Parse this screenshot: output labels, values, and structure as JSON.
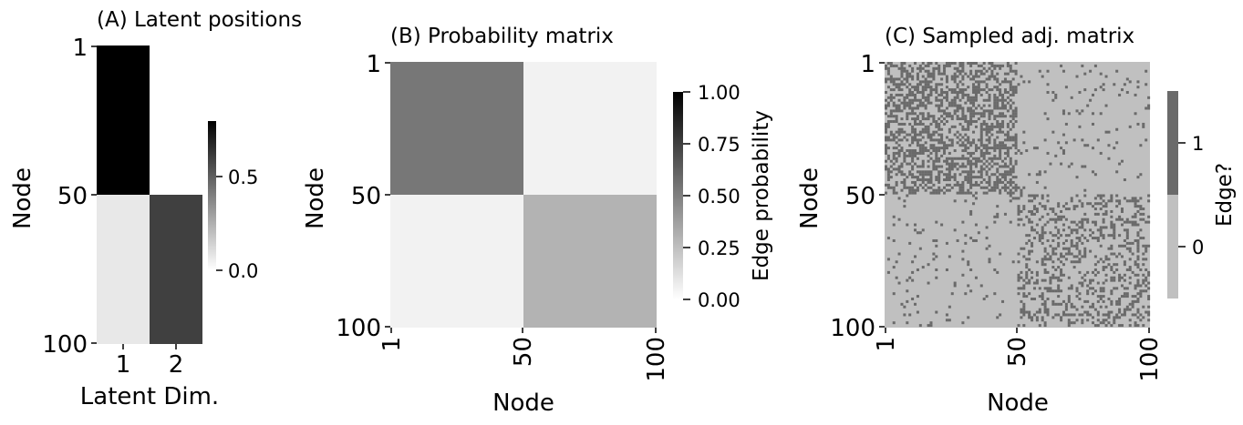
{
  "chart_data": [
    {
      "type": "heatmap",
      "title": "(A) Latent positions",
      "xlabel": "Latent Dim.",
      "ylabel": "Node",
      "xticks": [
        "1",
        "2"
      ],
      "yticks": [
        "1",
        "50",
        "100"
      ],
      "rows": [
        "Nodes 1-50",
        "Nodes 51-100"
      ],
      "values": [
        [
          0.8,
          0.0
        ],
        [
          0.0,
          0.6
        ]
      ],
      "colorbar": {
        "label": "",
        "range": [
          0,
          0.8
        ],
        "ticks": [
          "0.0",
          "0.5"
        ]
      },
      "colormap": [
        "#ffffff",
        "#000000"
      ]
    },
    {
      "type": "heatmap",
      "title": "(B) Probability matrix",
      "xlabel": "Node",
      "ylabel": "Node",
      "xticks": [
        "1",
        "50",
        "100"
      ],
      "yticks": [
        "1",
        "50",
        "100"
      ],
      "blocks": [
        [
          0.5,
          0.05
        ],
        [
          0.05,
          0.3
        ]
      ],
      "colorbar": {
        "label": "Edge probability",
        "range": [
          0,
          1
        ],
        "ticks": [
          "0.00",
          "0.25",
          "0.50",
          "0.75",
          "1.00"
        ]
      },
      "colormap": [
        "#ffffff",
        "#000000"
      ]
    },
    {
      "type": "heatmap",
      "title": "(C) Sampled adj. matrix",
      "xlabel": "Node",
      "ylabel": "Node",
      "xticks": [
        "1",
        "50",
        "100"
      ],
      "yticks": [
        "1",
        "50",
        "100"
      ],
      "n_nodes": 100,
      "block_probabilities": [
        [
          0.5,
          0.05
        ],
        [
          0.05,
          0.3
        ]
      ],
      "colorbar": {
        "label": "Edge?",
        "ticks": [
          "0",
          "1"
        ],
        "colors": {
          "0": "#c0c0c0",
          "1": "#6a6a6a"
        }
      }
    }
  ]
}
